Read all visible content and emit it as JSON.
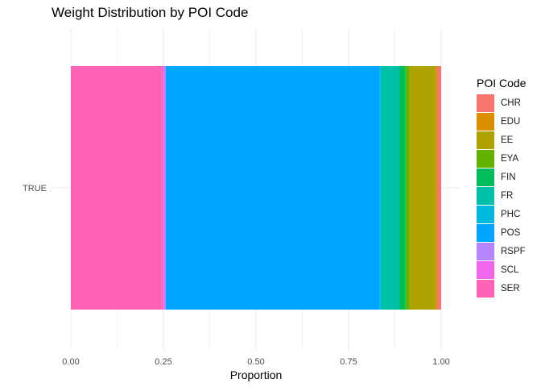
{
  "chart_data": {
    "type": "bar",
    "orientation": "horizontal",
    "stacked": true,
    "title": "Weight Distribution by POI Code",
    "xlabel": "Proportion",
    "ylabel": "",
    "xlim": [
      -0.05,
      1.05
    ],
    "x_ticks": [
      "0.00",
      "0.25",
      "0.50",
      "0.75",
      "1.00"
    ],
    "x_tick_values": [
      0,
      0.25,
      0.5,
      0.75,
      1.0
    ],
    "categories": [
      "TRUE"
    ],
    "grid": "on",
    "legend_title": "POI Code",
    "legend_position": "right",
    "series": [
      {
        "name": "CHR",
        "color": "#F8766D",
        "values": [
          0.012
        ]
      },
      {
        "name": "EDU",
        "color": "#DB8E00",
        "values": [
          0.004
        ]
      },
      {
        "name": "EE",
        "color": "#AEA200",
        "values": [
          0.07
        ]
      },
      {
        "name": "EYA",
        "color": "#64B200",
        "values": [
          0.01
        ]
      },
      {
        "name": "FIN",
        "color": "#00BD5C",
        "values": [
          0.018
        ]
      },
      {
        "name": "FR",
        "color": "#00C1A7",
        "values": [
          0.05
        ]
      },
      {
        "name": "PHC",
        "color": "#00BADE",
        "values": [
          0.002
        ]
      },
      {
        "name": "POS",
        "color": "#00A6FF",
        "values": [
          0.578
        ]
      },
      {
        "name": "RSPF",
        "color": "#B385FF",
        "values": [
          0.006
        ]
      },
      {
        "name": "SCL",
        "color": "#EF67EB",
        "values": [
          0.002
        ]
      },
      {
        "name": "SER",
        "color": "#FF63B6",
        "values": [
          0.248
        ]
      }
    ]
  }
}
